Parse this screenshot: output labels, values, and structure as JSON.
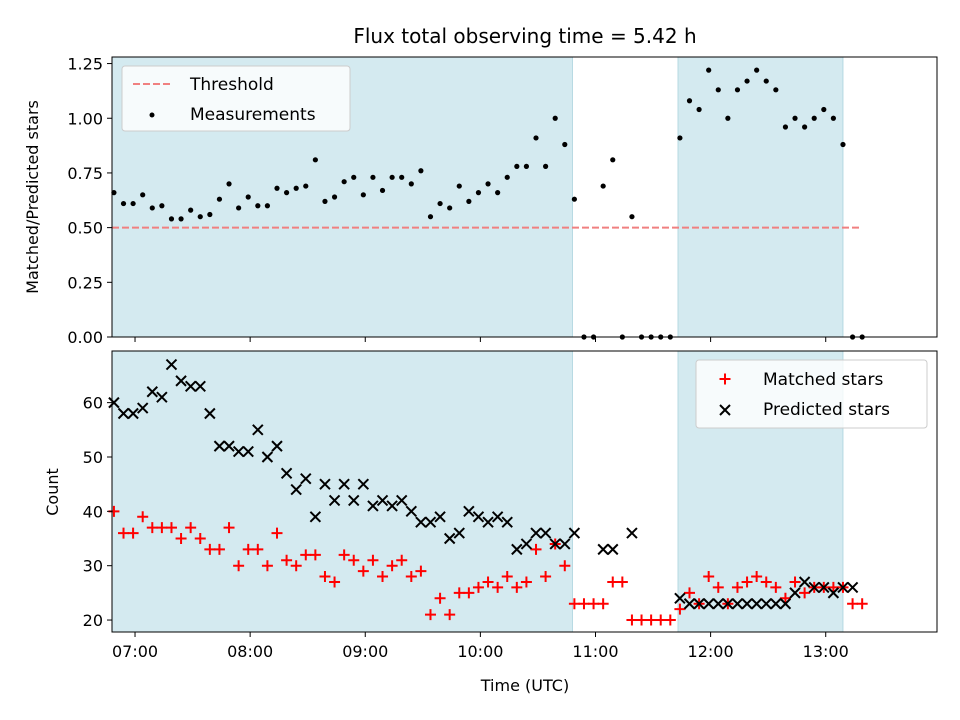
{
  "title": "Flux total observing time = 5.42 h",
  "xlabel": "Time (UTC)",
  "colors": {
    "shade": "#d4eaf0",
    "threshold": "#f08080",
    "measurement": "#000000",
    "matched": "#ff0000",
    "predicted": "#000000"
  },
  "chart_data": [
    {
      "type": "scatter",
      "ylabel": "Matched/Predicted stars",
      "xlim": [
        "06:48",
        "13:58"
      ],
      "ylim": [
        0,
        1.28
      ],
      "yticks": [
        0,
        0.25,
        0.5,
        0.75,
        1.0,
        1.25
      ],
      "ytick_labels": [
        "0.00",
        "0.25",
        "0.50",
        "0.75",
        "1.00",
        "1.25"
      ],
      "shaded_ranges": [
        [
          "06:48",
          "10:48"
        ],
        [
          "11:43",
          "13:09"
        ]
      ],
      "legend": {
        "position": "upper-left",
        "entries": [
          {
            "label": "Threshold",
            "style": "dashed-line"
          },
          {
            "label": "Measurements",
            "style": "dot"
          }
        ]
      },
      "series": [
        {
          "name": "Threshold",
          "style": "dashed-line",
          "x": [
            "06:48",
            "13:18"
          ],
          "y": [
            0.5,
            0.5
          ]
        },
        {
          "name": "Measurements",
          "style": "dot",
          "x": [
            "06:49",
            "06:54",
            "06:59",
            "07:04",
            "07:09",
            "07:14",
            "07:19",
            "07:24",
            "07:29",
            "07:34",
            "07:39",
            "07:44",
            "07:49",
            "07:54",
            "07:59",
            "08:04",
            "08:09",
            "08:14",
            "08:19",
            "08:24",
            "08:29",
            "08:34",
            "08:39",
            "08:44",
            "08:49",
            "08:54",
            "08:59",
            "09:04",
            "09:09",
            "09:14",
            "09:19",
            "09:24",
            "09:29",
            "09:34",
            "09:39",
            "09:44",
            "09:49",
            "09:54",
            "09:59",
            "10:04",
            "10:09",
            "10:14",
            "10:19",
            "10:24",
            "10:29",
            "10:34",
            "10:39",
            "10:44",
            "10:49",
            "10:54",
            "10:59",
            "11:04",
            "11:09",
            "11:14",
            "11:19",
            "11:24",
            "11:29",
            "11:34",
            "11:39",
            "11:44",
            "11:49",
            "11:54",
            "11:59",
            "12:04",
            "12:09",
            "12:14",
            "12:19",
            "12:24",
            "12:29",
            "12:34",
            "12:39",
            "12:44",
            "12:49",
            "12:54",
            "12:59",
            "13:04",
            "13:09",
            "13:14",
            "13:19"
          ],
          "y": [
            0.66,
            0.61,
            0.61,
            0.65,
            0.59,
            0.6,
            0.54,
            0.54,
            0.58,
            0.55,
            0.56,
            0.63,
            0.7,
            0.59,
            0.64,
            0.6,
            0.6,
            0.68,
            0.66,
            0.68,
            0.69,
            0.81,
            0.62,
            0.64,
            0.71,
            0.73,
            0.65,
            0.73,
            0.67,
            0.73,
            0.73,
            0.7,
            0.76,
            0.55,
            0.61,
            0.59,
            0.69,
            0.62,
            0.66,
            0.7,
            0.66,
            0.73,
            0.78,
            0.78,
            0.91,
            0.78,
            1.0,
            0.88,
            0.63,
            0.0,
            0.0,
            0.69,
            0.81,
            0.0,
            0.55,
            0.0,
            0.0,
            0.0,
            0.0,
            0.91,
            1.08,
            1.04,
            1.22,
            1.13,
            1.0,
            1.13,
            1.17,
            1.22,
            1.17,
            1.13,
            0.96,
            1.0,
            0.96,
            1.0,
            1.04,
            1.0,
            0.88,
            0.0,
            0.0
          ]
        }
      ]
    },
    {
      "type": "scatter",
      "ylabel": "Count",
      "xlim": [
        "06:48",
        "13:58"
      ],
      "ylim": [
        17.8,
        69.5
      ],
      "yticks": [
        20,
        30,
        40,
        50,
        60
      ],
      "ytick_labels": [
        "20",
        "30",
        "40",
        "50",
        "60"
      ],
      "xticks": [
        "07:00",
        "08:00",
        "09:00",
        "10:00",
        "11:00",
        "12:00",
        "13:00"
      ],
      "shaded_ranges": [
        [
          "06:48",
          "10:48"
        ],
        [
          "11:43",
          "13:09"
        ]
      ],
      "legend": {
        "position": "upper-right",
        "entries": [
          {
            "label": "Matched stars",
            "style": "plus"
          },
          {
            "label": "Predicted stars",
            "style": "x"
          }
        ]
      },
      "series": [
        {
          "name": "Matched stars",
          "style": "plus",
          "x": [
            "06:49",
            "06:54",
            "06:59",
            "07:04",
            "07:09",
            "07:14",
            "07:19",
            "07:24",
            "07:29",
            "07:34",
            "07:39",
            "07:44",
            "07:49",
            "07:54",
            "07:59",
            "08:04",
            "08:09",
            "08:14",
            "08:19",
            "08:24",
            "08:29",
            "08:34",
            "08:39",
            "08:44",
            "08:49",
            "08:54",
            "08:59",
            "09:04",
            "09:09",
            "09:14",
            "09:19",
            "09:24",
            "09:29",
            "09:34",
            "09:39",
            "09:44",
            "09:49",
            "09:54",
            "09:59",
            "10:04",
            "10:09",
            "10:14",
            "10:19",
            "10:24",
            "10:29",
            "10:34",
            "10:39",
            "10:44",
            "10:49",
            "10:54",
            "10:59",
            "11:04",
            "11:09",
            "11:14",
            "11:19",
            "11:24",
            "11:29",
            "11:34",
            "11:39",
            "11:44",
            "11:49",
            "11:54",
            "11:59",
            "12:04",
            "12:09",
            "12:14",
            "12:19",
            "12:24",
            "12:29",
            "12:34",
            "12:39",
            "12:44",
            "12:49",
            "12:54",
            "12:59",
            "13:04",
            "13:09",
            "13:14",
            "13:19"
          ],
          "y": [
            40,
            36,
            36,
            39,
            37,
            37,
            37,
            35,
            37,
            35,
            33,
            33,
            37,
            30,
            33,
            33,
            30,
            36,
            31,
            30,
            32,
            32,
            28,
            27,
            32,
            31,
            29,
            31,
            28,
            30,
            31,
            28,
            29,
            21,
            24,
            21,
            25,
            25,
            26,
            27,
            26,
            28,
            26,
            27,
            33,
            28,
            34,
            30,
            23,
            23,
            23,
            23,
            27,
            27,
            20,
            20,
            20,
            20,
            20,
            22,
            25,
            23,
            28,
            26,
            23,
            26,
            27,
            28,
            27,
            26,
            24,
            27,
            25,
            26,
            26,
            26,
            26,
            23,
            23
          ]
        },
        {
          "name": "Predicted stars",
          "style": "x",
          "x": [
            "06:49",
            "06:54",
            "06:59",
            "07:04",
            "07:09",
            "07:14",
            "07:19",
            "07:24",
            "07:29",
            "07:34",
            "07:39",
            "07:44",
            "07:49",
            "07:54",
            "07:59",
            "08:04",
            "08:09",
            "08:14",
            "08:19",
            "08:24",
            "08:29",
            "08:34",
            "08:39",
            "08:44",
            "08:49",
            "08:54",
            "08:59",
            "09:04",
            "09:09",
            "09:14",
            "09:19",
            "09:24",
            "09:29",
            "09:34",
            "09:39",
            "09:44",
            "09:49",
            "09:54",
            "09:59",
            "10:04",
            "10:09",
            "10:14",
            "10:19",
            "10:24",
            "10:29",
            "10:34",
            "10:39",
            "10:44",
            "10:49",
            "11:04",
            "11:09",
            "11:19",
            "11:44",
            "11:49",
            "11:54",
            "11:59",
            "12:04",
            "12:09",
            "12:14",
            "12:19",
            "12:24",
            "12:29",
            "12:34",
            "12:39",
            "12:44",
            "12:49",
            "12:54",
            "12:59",
            "13:04",
            "13:09",
            "13:14"
          ],
          "y": [
            60,
            58,
            58,
            59,
            62,
            61,
            67,
            64,
            63,
            63,
            58,
            52,
            52,
            51,
            51,
            55,
            50,
            52,
            47,
            44,
            46,
            39,
            45,
            42,
            45,
            42,
            45,
            41,
            42,
            41,
            42,
            40,
            38,
            38,
            39,
            35,
            36,
            40,
            39,
            38,
            39,
            38,
            33,
            34,
            36,
            36,
            34,
            34,
            36,
            33,
            33,
            36,
            24,
            23,
            23,
            23,
            23,
            23,
            23,
            23,
            23,
            23,
            23,
            23,
            25,
            27,
            26,
            26,
            25,
            26,
            26
          ]
        }
      ]
    }
  ]
}
